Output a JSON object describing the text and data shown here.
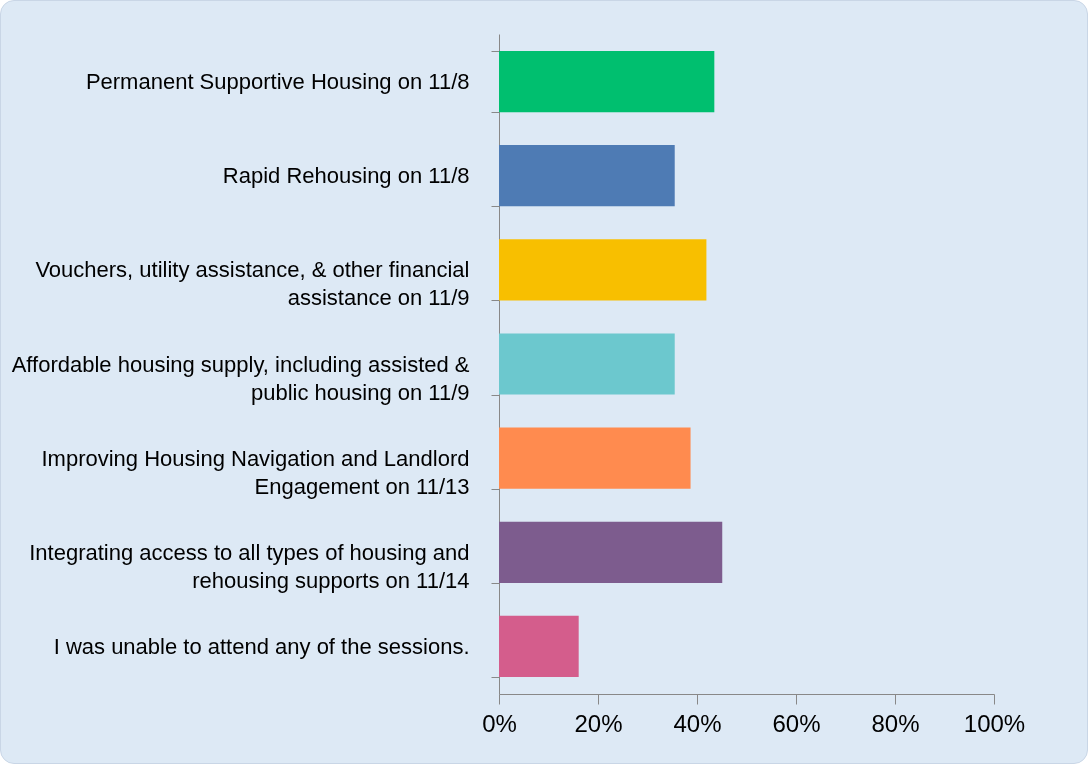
{
  "chart_data": {
    "type": "bar",
    "orientation": "horizontal",
    "categories": [
      "Permanent Supportive Housing on 11/8",
      "Rapid Rehousing on 11/8",
      "Vouchers, utility assistance, & other financial assistance on 11/9",
      "Affordable housing supply, including assisted & public housing on 11/9",
      "Improving Housing Navigation and Landlord Engagement on 11/13",
      "Integrating access to all types of housing and rehousing supports on 11/14",
      "I was unable to attend any of the sessions."
    ],
    "values": [
      43.5,
      35.5,
      41.9,
      35.5,
      38.7,
      45.1,
      16.1
    ],
    "colors": [
      "#00bf6f",
      "#4e7bb4",
      "#f8bf00",
      "#6cc8ce",
      "#ff8b4f",
      "#7d5c8e",
      "#d45d8c"
    ],
    "xlim": [
      0,
      100
    ],
    "xticks": [
      {
        "value": 0,
        "label": "0%"
      },
      {
        "value": 20,
        "label": "20%"
      },
      {
        "value": 40,
        "label": "40%"
      },
      {
        "value": 60,
        "label": "60%"
      },
      {
        "value": 80,
        "label": "80%"
      },
      {
        "value": 100,
        "label": "100%"
      }
    ],
    "grid": false
  }
}
